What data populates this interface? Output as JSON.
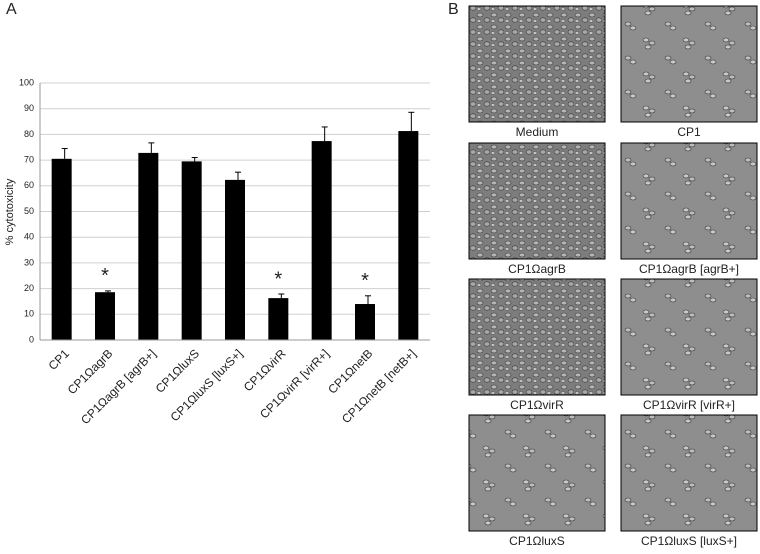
{
  "chart_data": {
    "type": "bar",
    "panel_label": "A",
    "ylabel": "% cytotoxicity",
    "categories": [
      "CP1",
      "CP1ΩagrB",
      "CP1ΩagrB [agrB+]",
      "CP1ΩluxS",
      "CP1ΩluxS [luxS+]",
      "CP1ΩvirR",
      "CP1ΩvirR [virR+]",
      "CP1ΩnetB",
      "CP1ΩnetB [netB+]"
    ],
    "values": [
      70.5,
      18.6,
      72.8,
      69.5,
      62.3,
      16.3,
      77.4,
      14.0,
      81.3
    ],
    "errors": [
      4.0,
      0.5,
      3.9,
      1.5,
      3.0,
      1.6,
      5.5,
      3.2,
      7.3
    ],
    "significance": [
      null,
      "*",
      null,
      null,
      null,
      "*",
      null,
      "*",
      null
    ],
    "color": "#000000",
    "ylim": [
      0,
      100
    ],
    "yticks": [
      0,
      10,
      20,
      30,
      40,
      50,
      60,
      70,
      80,
      90,
      100
    ],
    "grid": true
  },
  "panel_b": {
    "panel_label": "B",
    "images": [
      {
        "caption": "Medium"
      },
      {
        "caption": "CP1"
      },
      {
        "caption": "CP1ΩagrB"
      },
      {
        "caption": "CP1ΩagrB [agrB+]"
      },
      {
        "caption": "CP1ΩvirR"
      },
      {
        "caption": "CP1ΩvirR [virR+]"
      },
      {
        "caption": "CP1ΩluxS"
      },
      {
        "caption": "CP1ΩluxS [luxS+]"
      }
    ]
  }
}
